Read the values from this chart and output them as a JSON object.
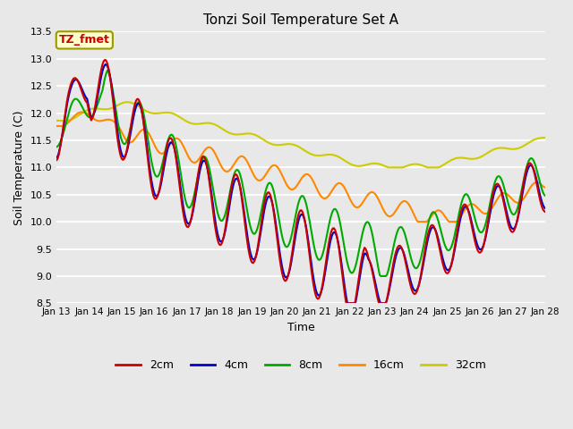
{
  "title": "Tonzi Soil Temperature Set A",
  "xlabel": "Time",
  "ylabel": "Soil Temperature (C)",
  "ylim": [
    8.5,
    13.5
  ],
  "bg_color": "#e8e8e8",
  "line_colors": {
    "2cm": "#cc0000",
    "4cm": "#0000cc",
    "8cm": "#00aa00",
    "16cm": "#ff8800",
    "32cm": "#cccc00"
  },
  "annotation_text": "TZ_fmet",
  "annotation_color": "#cc0000",
  "annotation_bg": "#ffffcc",
  "annotation_edge": "#999900",
  "x_tick_labels": [
    "Jan 13",
    "Jan 14",
    "Jan 15",
    "Jan 16",
    "Jan 17",
    "Jan 18",
    "Jan 19",
    "Jan 20",
    "Jan 21",
    "Jan 22",
    "Jan 23",
    "Jan 24",
    "Jan 25",
    "Jan 26",
    "Jan 27",
    "Jan 28"
  ],
  "n_points": 480
}
